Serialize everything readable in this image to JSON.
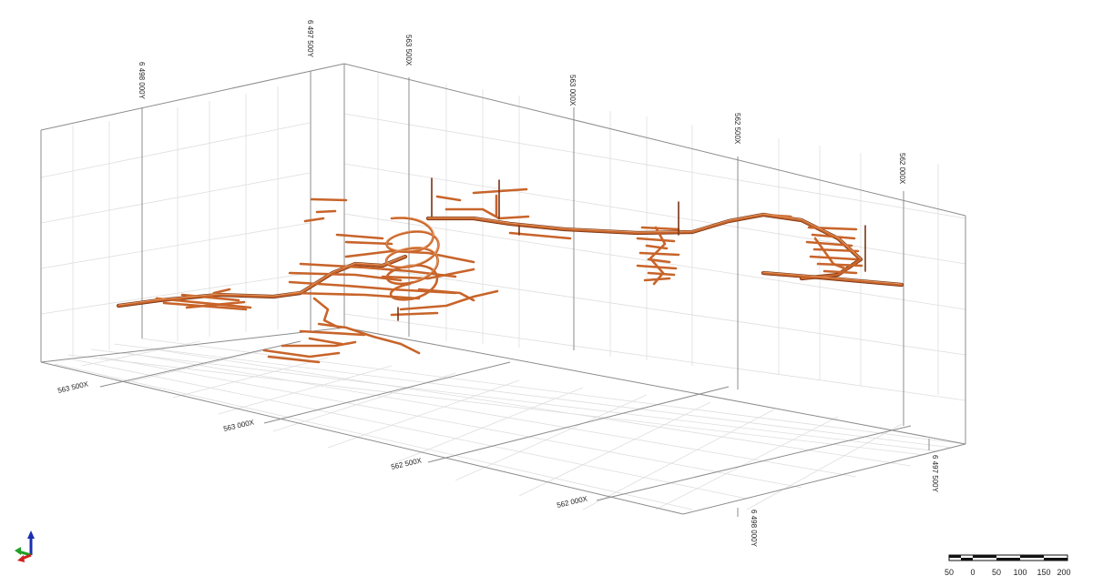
{
  "viewer": {
    "axis_labels": {
      "top_y_left": "6 498 000Y",
      "top_y_back": "6 497 500Y",
      "top_x_1": "563 500X",
      "top_x_2": "563 000X",
      "top_x_3": "562 500X",
      "top_x_4": "562 000X",
      "bottom_x_1": "563 500X",
      "bottom_x_2": "563 000X",
      "bottom_x_3": "562 500X",
      "bottom_x_4": "562 000X",
      "bottom_y_front": "6 498 000Y",
      "bottom_y_right": "6 497 500Y"
    },
    "scale_bar": {
      "ticks": [
        "50",
        "0",
        "50",
        "100",
        "150",
        "200"
      ]
    },
    "colors": {
      "model": "#c8642a",
      "model_dark": "#7a3414",
      "grid": "#d9d9d9",
      "box": "#8c8c8c"
    },
    "axis_triad_icon": "axis-triad-icon"
  }
}
